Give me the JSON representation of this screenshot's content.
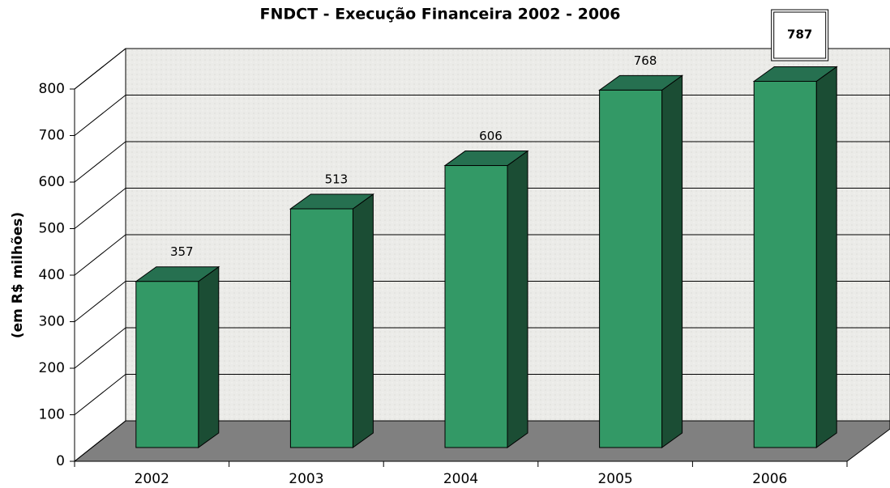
{
  "chart_data": {
    "type": "bar",
    "title": "FNDCT - Execução Financeira 2002 - 2006",
    "y_label": "(em R$ milhões)",
    "categories": [
      "2002",
      "2003",
      "2004",
      "2005",
      "2006"
    ],
    "values": [
      357,
      513,
      606,
      768,
      787
    ],
    "color": "#339966",
    "ylim": [
      0,
      800
    ],
    "yticks": [
      0,
      100,
      200,
      300,
      400,
      500,
      600,
      700,
      800
    ],
    "grid": true
  }
}
